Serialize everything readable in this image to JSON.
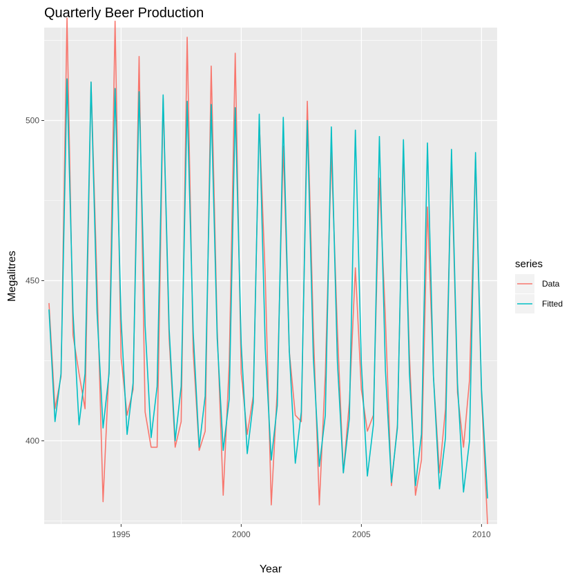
{
  "chart_data": {
    "type": "line",
    "title": "Quarterly Beer Production",
    "xlabel": "Year",
    "ylabel": "Megalitres",
    "xlim": [
      1991.8,
      2010.65
    ],
    "ylim": [
      374,
      529
    ],
    "x_ticks": [
      1995,
      2000,
      2005,
      2010
    ],
    "y_ticks": [
      400,
      450,
      500
    ],
    "grid": true,
    "legend": {
      "title": "series",
      "position": "right"
    },
    "x_start": 1992.0,
    "x_step": 0.25,
    "series": [
      {
        "name": "Data",
        "color": "#F8766D",
        "values": [
          443,
          410,
          420,
          532,
          433,
          421,
          410,
          512,
          449,
          381,
          423,
          531,
          426,
          408,
          416,
          520,
          409,
          398,
          398,
          507,
          432,
          398,
          406,
          526,
          428,
          397,
          403,
          517,
          435,
          383,
          424,
          521,
          421,
          402,
          414,
          500,
          451,
          380,
          416,
          492,
          428,
          408,
          406,
          506,
          435,
          380,
          421,
          490,
          435,
          390,
          412,
          454,
          416,
          403,
          408,
          482,
          438,
          386,
          405,
          491,
          427,
          383,
          394,
          473,
          420,
          390,
          410,
          488,
          415,
          398,
          419,
          488,
          414,
          374
        ]
      },
      {
        "name": "Fitted",
        "color": "#00BFC4",
        "values": [
          441,
          406,
          421,
          513,
          440,
          405,
          421,
          512,
          440,
          404,
          421,
          510,
          438,
          402,
          418,
          509,
          436,
          401,
          417,
          508,
          435,
          400,
          417,
          506,
          434,
          398,
          414,
          505,
          432,
          397,
          413,
          504,
          430,
          396,
          412,
          502,
          429,
          394,
          411,
          501,
          428,
          393,
          409,
          500,
          426,
          392,
          408,
          498,
          425,
          390,
          407,
          497,
          424,
          389,
          405,
          495,
          422,
          387,
          404,
          494,
          421,
          386,
          402,
          493,
          420,
          385,
          401,
          491,
          418,
          384,
          400,
          490,
          416,
          382
        ]
      }
    ]
  }
}
